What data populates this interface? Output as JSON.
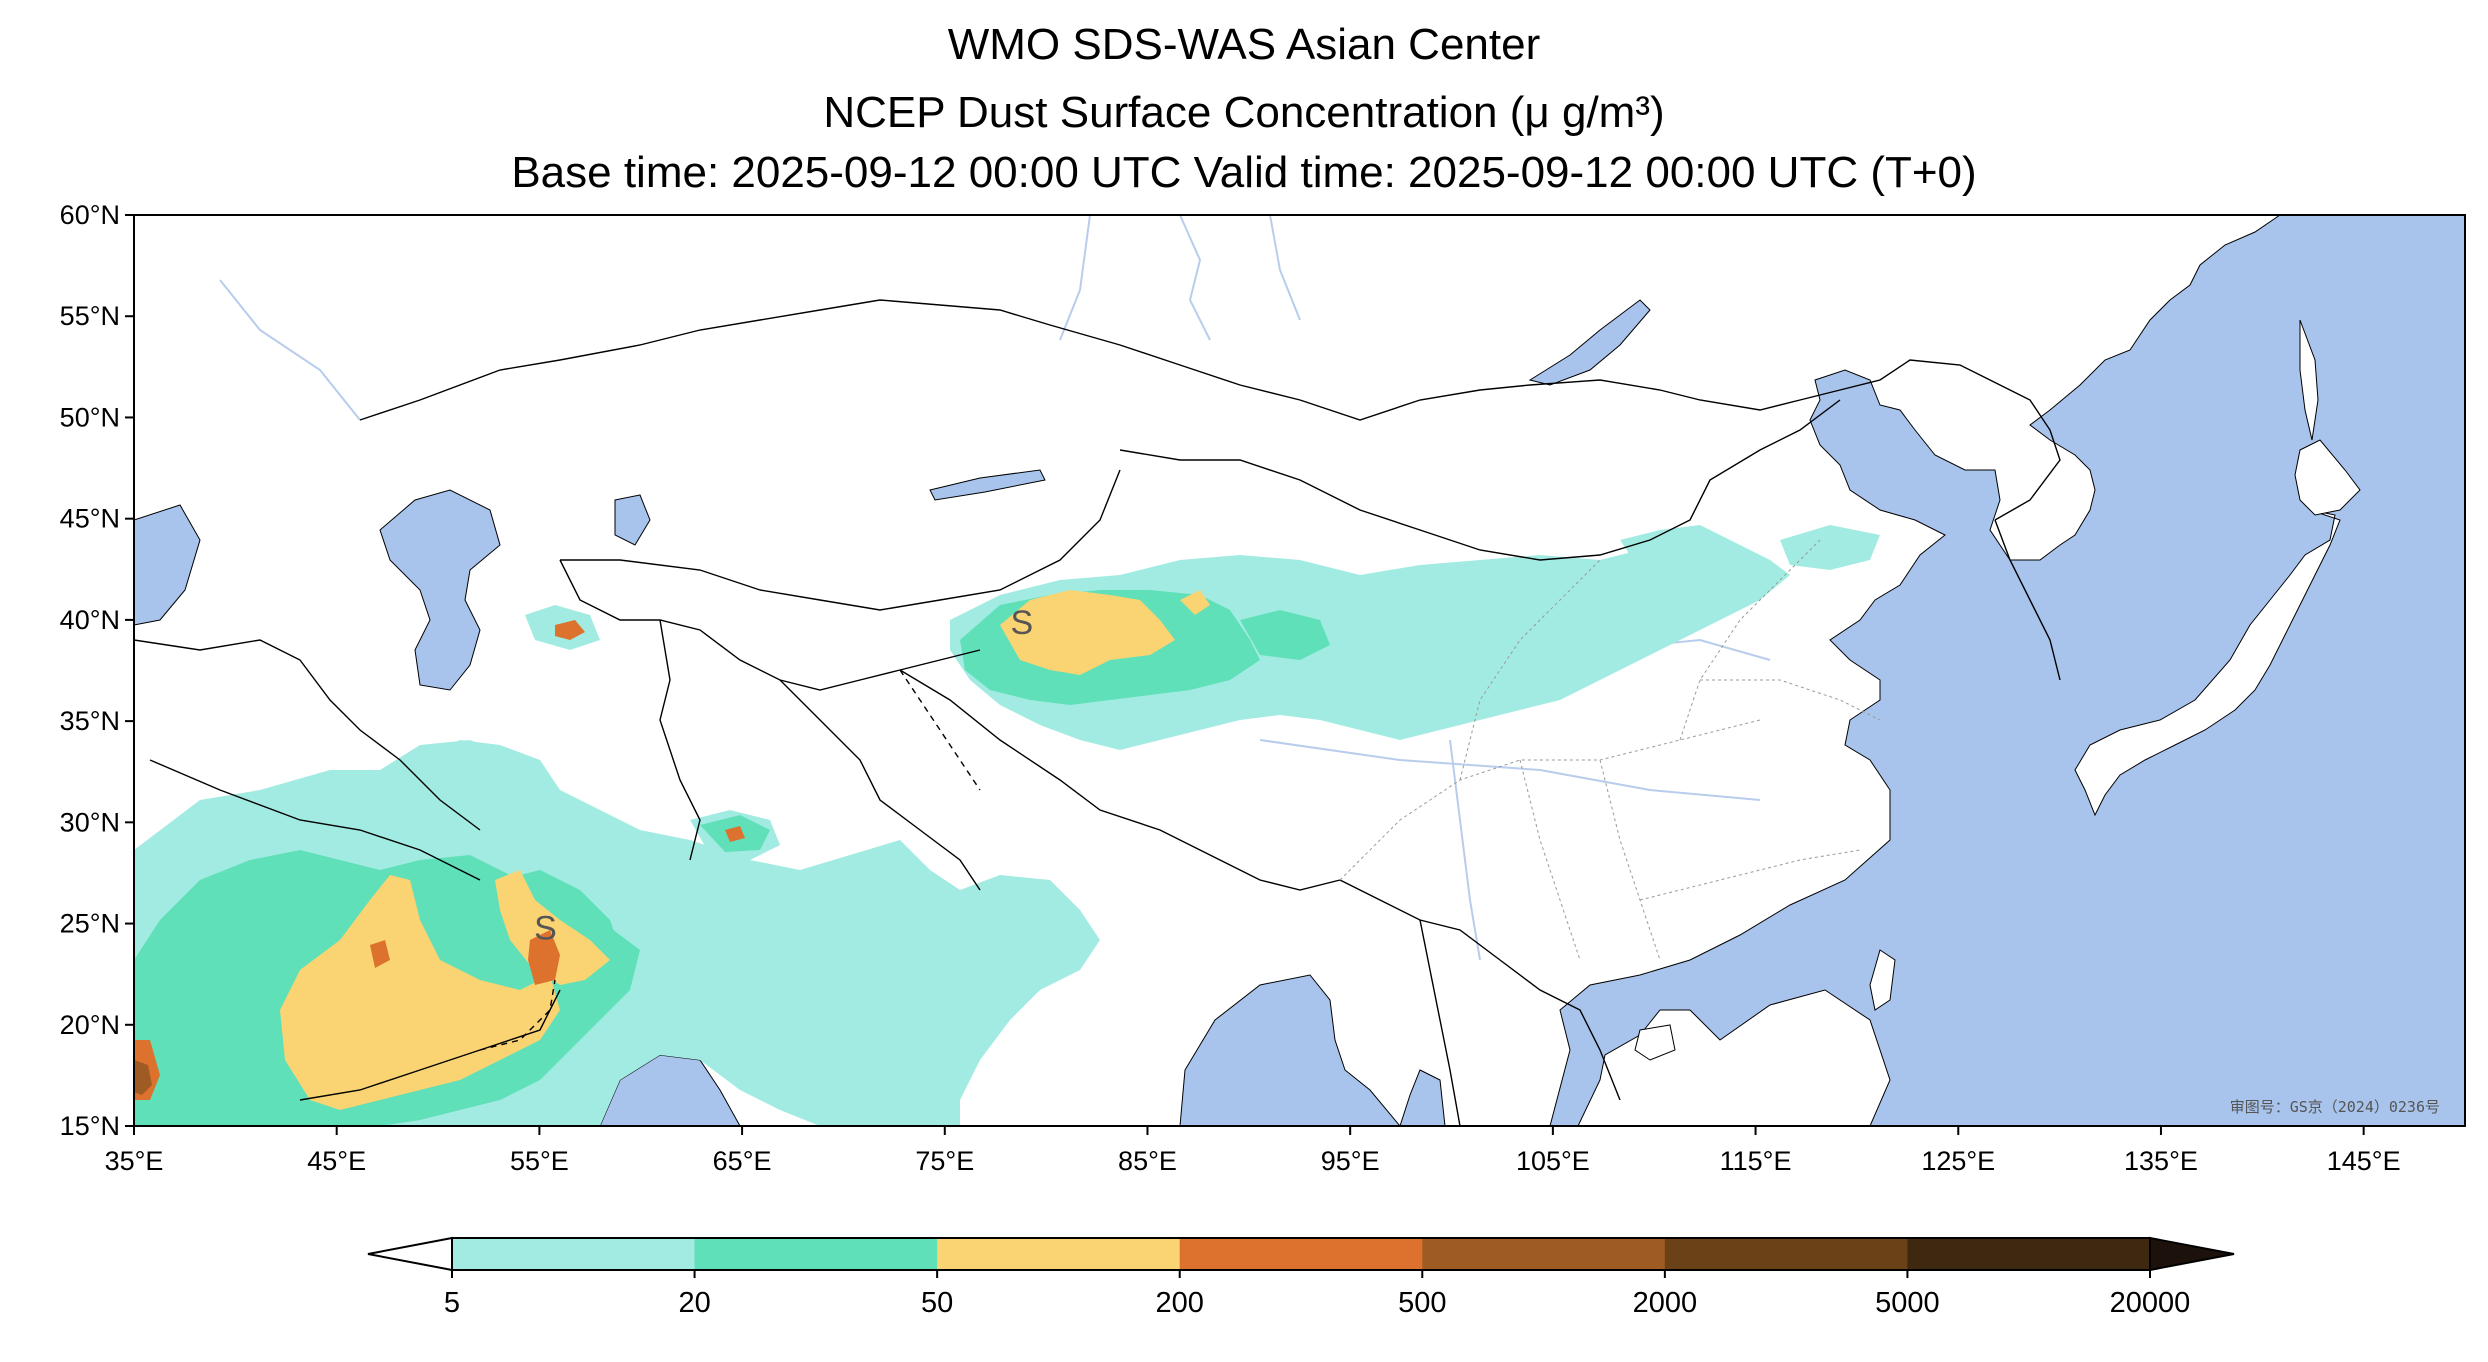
{
  "titles": {
    "line1": "WMO SDS-WAS Asian Center",
    "line2": "NCEP Dust Surface Concentration (μ g/m³)",
    "line3": "Base time: 2025-09-12 00:00 UTC Valid time: 2025-09-12 00:00 UTC (T+0)"
  },
  "map": {
    "extent": {
      "lon": [
        35,
        150
      ],
      "lat": [
        15,
        60
      ]
    },
    "lat_ticks": [
      {
        "value": 60,
        "label": "60°N"
      },
      {
        "value": 55,
        "label": "55°N"
      },
      {
        "value": 50,
        "label": "50°N"
      },
      {
        "value": 45,
        "label": "45°N"
      },
      {
        "value": 40,
        "label": "40°N"
      },
      {
        "value": 35,
        "label": "35°N"
      },
      {
        "value": 30,
        "label": "30°N"
      },
      {
        "value": 25,
        "label": "25°N"
      },
      {
        "value": 20,
        "label": "20°N"
      },
      {
        "value": 15,
        "label": "15°N"
      }
    ],
    "lon_ticks": [
      {
        "value": 35,
        "label": "35°E"
      },
      {
        "value": 45,
        "label": "45°E"
      },
      {
        "value": 55,
        "label": "55°E"
      },
      {
        "value": 65,
        "label": "65°E"
      },
      {
        "value": 75,
        "label": "75°E"
      },
      {
        "value": 85,
        "label": "85°E"
      },
      {
        "value": 95,
        "label": "95°E"
      },
      {
        "value": 105,
        "label": "105°E"
      },
      {
        "value": 115,
        "label": "115°E"
      },
      {
        "value": 125,
        "label": "125°E"
      },
      {
        "value": 135,
        "label": "135°E"
      },
      {
        "value": 145,
        "label": "145°E"
      }
    ],
    "markers": [
      {
        "symbol": "S",
        "lon": 78.8,
        "lat": 39.9
      },
      {
        "symbol": "S",
        "lon": 55.3,
        "lat": 24.8
      }
    ],
    "credit": "审图号：GS京（2024）0236号",
    "colors": {
      "sea": "#a9c4ec",
      "land": "#ffffff",
      "river": "#b8cdec",
      "border": "#000000"
    }
  },
  "colorbar": {
    "levels": [
      {
        "label": "5",
        "value": 5
      },
      {
        "label": "20",
        "value": 20
      },
      {
        "label": "50",
        "value": 50
      },
      {
        "label": "200",
        "value": 200
      },
      {
        "label": "500",
        "value": 500
      },
      {
        "label": "2000",
        "value": 2000
      },
      {
        "label": "5000",
        "value": 5000
      },
      {
        "label": "20000",
        "value": 20000
      }
    ],
    "colors": [
      "#a2ebe2",
      "#5fe0b8",
      "#fad473",
      "#dc722e",
      "#9e5b23",
      "#6b4218",
      "#3e2810"
    ],
    "under_color": "#ffffff",
    "over_color": "#1c120b"
  }
}
